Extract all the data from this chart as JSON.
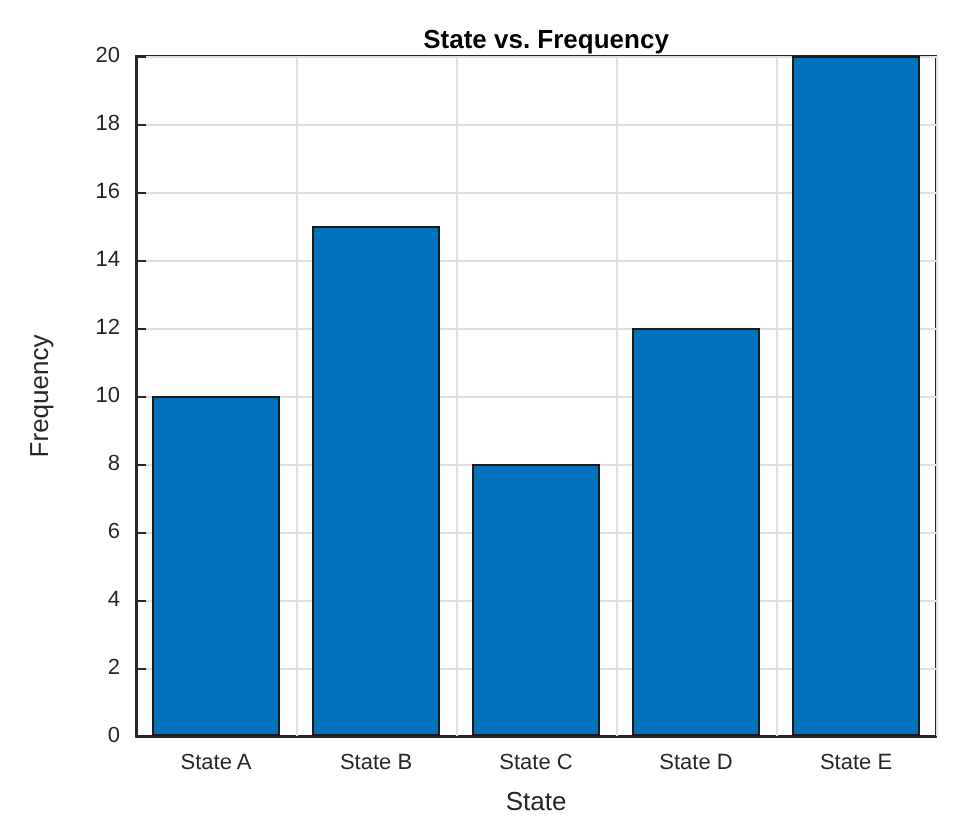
{
  "chart_data": {
    "type": "bar",
    "title": "State vs. Frequency",
    "xlabel": "State",
    "ylabel": "Frequency",
    "categories": [
      "State A",
      "State B",
      "State C",
      "State D",
      "State E"
    ],
    "values": [
      10,
      15,
      8,
      12,
      20
    ],
    "color": "#0072bd",
    "ylim": [
      0,
      20
    ],
    "yticks": [
      0,
      2,
      4,
      6,
      8,
      10,
      12,
      14,
      16,
      18,
      20
    ],
    "grid": true
  }
}
